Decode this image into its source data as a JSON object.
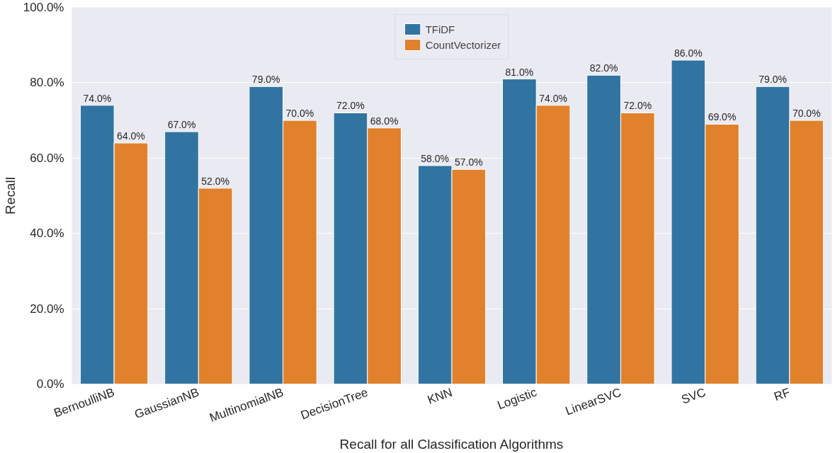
{
  "chart_data": {
    "type": "bar",
    "xlabel": "Recall for all Classification Algorithms",
    "ylabel": "Recall",
    "categories": [
      "BernoulliNB",
      "GaussianNB",
      "MultinomialNB",
      "DecisionTree",
      "KNN",
      "Logistic",
      "LinearSVC",
      "SVC",
      "RF"
    ],
    "series": [
      {
        "name": "TFiDF",
        "color": "#3274a1",
        "values": [
          74,
          67,
          79,
          72,
          58,
          81,
          82,
          86,
          79
        ],
        "value_labels": [
          "74.0%",
          "67.0%",
          "79.0%",
          "72.0%",
          "58.0%",
          "81.0%",
          "82.0%",
          "86.0%",
          "79.0%"
        ]
      },
      {
        "name": "CountVectorizer",
        "color": "#e1812c",
        "values": [
          64,
          52,
          70,
          68,
          57,
          74,
          72,
          69,
          70
        ],
        "value_labels": [
          "64.0%",
          "52.0%",
          "70.0%",
          "68.0%",
          "57.0%",
          "74.0%",
          "72.0%",
          "69.0%",
          "70.0%"
        ]
      }
    ],
    "ylim": [
      0,
      100
    ],
    "yticks": [
      {
        "value": 0,
        "label": "0.0%"
      },
      {
        "value": 20,
        "label": "20.0%"
      },
      {
        "value": 40,
        "label": "40.0%"
      },
      {
        "value": 60,
        "label": "60.0%"
      },
      {
        "value": 80,
        "label": "80.0%"
      },
      {
        "value": 100,
        "label": "100.0%"
      }
    ],
    "grid": "y",
    "legend": "top"
  }
}
